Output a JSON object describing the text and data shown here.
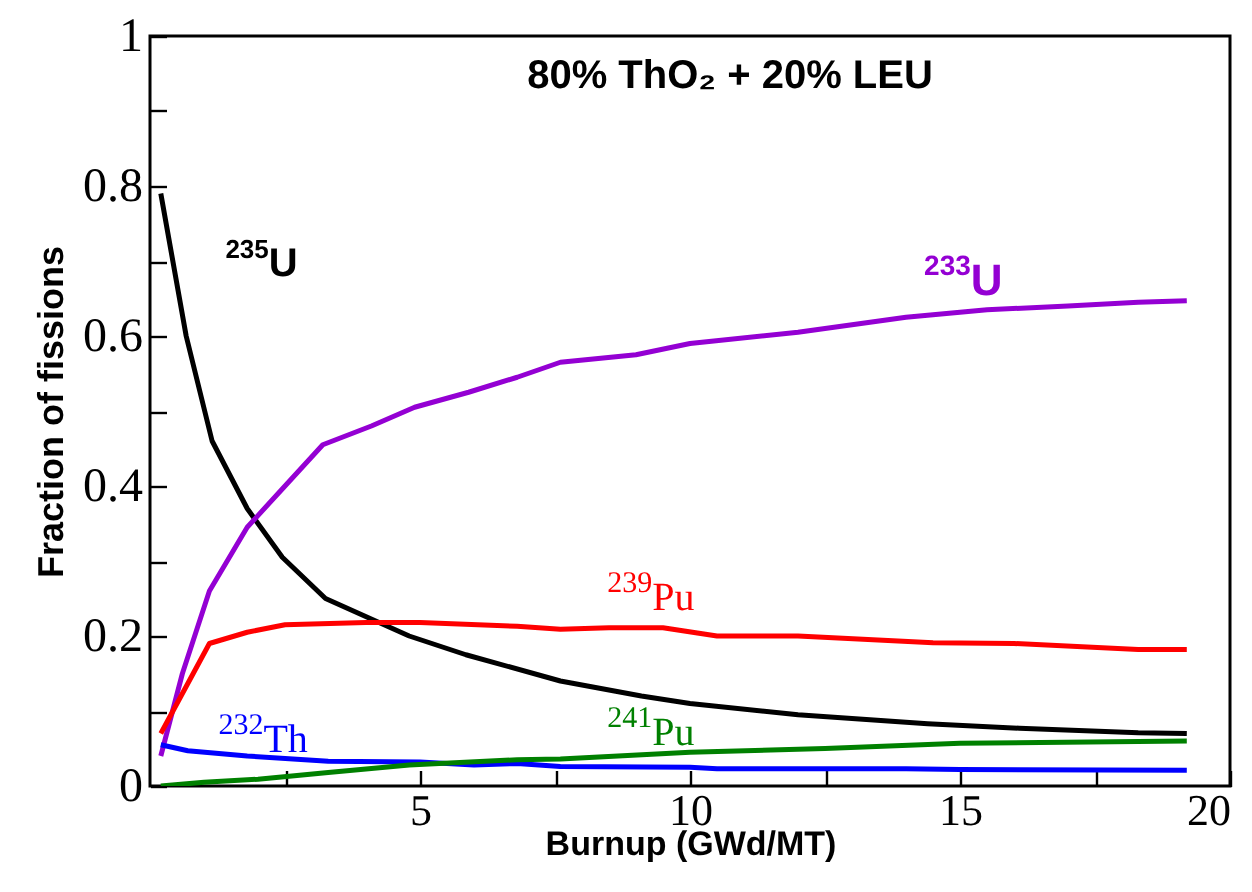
{
  "chart_data": {
    "type": "line",
    "title": "80% ThO₂ + 20% LEU",
    "xlabel": "Burnup (GWd/MT)",
    "ylabel": "Fraction of fissions",
    "xlim": [
      0,
      20
    ],
    "ylim": [
      0,
      1
    ],
    "xticks": [
      {
        "value": 2.5,
        "label": null
      },
      5,
      {
        "value": 7.5,
        "label": null
      },
      10,
      {
        "value": 12.5,
        "label": null
      },
      15,
      {
        "value": 17.5,
        "label": null
      },
      20
    ],
    "yticks": [
      0,
      {
        "value": 0.1,
        "label": null
      },
      0.2,
      {
        "value": 0.3,
        "label": null
      },
      0.4,
      {
        "value": 0.5,
        "label": null
      },
      0.6,
      {
        "value": 0.7,
        "label": null
      },
      0.8,
      {
        "value": 0.9,
        "label": null
      },
      1
    ],
    "grid": false,
    "marker": "none",
    "line_style": "solid",
    "series": [
      {
        "name": "$^{235}$U",
        "color": "#000000",
        "x": [
          0.2,
          0.67,
          1.15,
          1.8,
          2.45,
          3.25,
          4.8,
          5.85,
          7.6,
          9.1,
          10,
          12,
          14.4,
          16.1,
          18.3,
          19.2
        ],
        "values": [
          0.79,
          0.6,
          0.46,
          0.37,
          0.305,
          0.25,
          0.2,
          0.175,
          0.14,
          0.12,
          0.11,
          0.095,
          0.083,
          0.077,
          0.071,
          0.07
        ]
      },
      {
        "name": "$^{233}$U",
        "color": "#9400d3",
        "x": [
          0.2,
          0.6,
          1.1,
          1.8,
          2.5,
          3.2,
          4.1,
          4.9,
          5.9,
          6.8,
          7.6,
          9,
          10,
          12,
          14,
          15.5,
          17,
          18.3,
          19.2
        ],
        "values": [
          0.04,
          0.15,
          0.26,
          0.345,
          0.4,
          0.455,
          0.48,
          0.505,
          0.525,
          0.545,
          0.565,
          0.575,
          0.59,
          0.605,
          0.625,
          0.635,
          0.64,
          0.645,
          0.647
        ]
      },
      {
        "name": "$^{239}$Pu",
        "color": "#ff0000",
        "x": [
          0.2,
          1.1,
          1.8,
          2.5,
          4,
          5,
          6.8,
          7.6,
          8.5,
          9.5,
          10.5,
          12,
          14.5,
          16,
          18.3,
          19.2
        ],
        "values": [
          0.07,
          0.19,
          0.205,
          0.215,
          0.218,
          0.218,
          0.213,
          0.209,
          0.211,
          0.211,
          0.2,
          0.2,
          0.191,
          0.19,
          0.182,
          0.182
        ]
      },
      {
        "name": "$^{232}$Th",
        "color": "#0000ff",
        "x": [
          0.2,
          0.7,
          1.8,
          3.3,
          5,
          6,
          6.8,
          7.6,
          10,
          10.5,
          14,
          15,
          19.2
        ],
        "values": [
          0.055,
          0.047,
          0.04,
          0.033,
          0.032,
          0.028,
          0.03,
          0.026,
          0.025,
          0.023,
          0.023,
          0.022,
          0.021
        ]
      },
      {
        "name": "$^{241}$Pu",
        "color": "#008000",
        "x": [
          0.2,
          1,
          2,
          3.3,
          4.8,
          6.8,
          7.6,
          10,
          12.5,
          15,
          19.2
        ],
        "values": [
          0,
          0.005,
          0.009,
          0.018,
          0.028,
          0.035,
          0.036,
          0.045,
          0.05,
          0.057,
          0.06
        ]
      }
    ]
  }
}
